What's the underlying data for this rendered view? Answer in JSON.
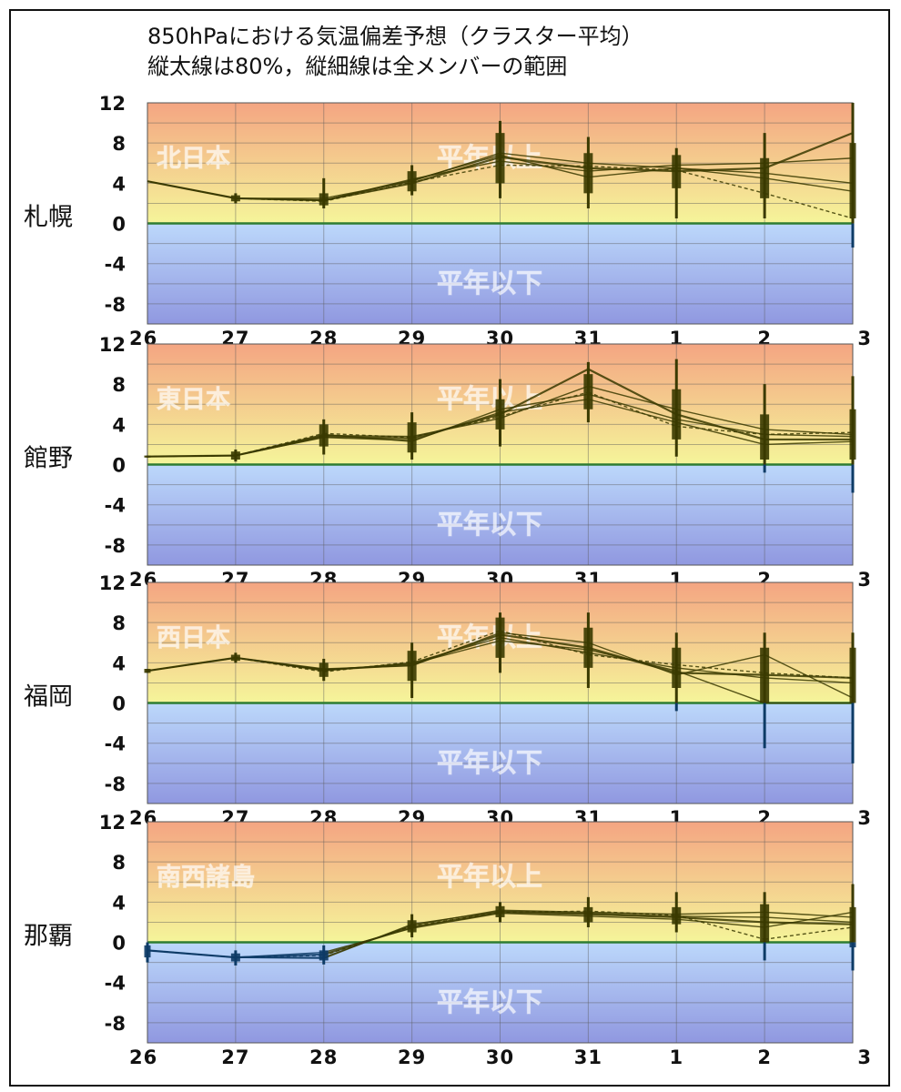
{
  "title": {
    "line1": "850hPaにおける気温偏差予想（クラスター平均）",
    "line2": "縦太線は80%，縦細線は全メンバーの範囲"
  },
  "labels": {
    "above_normal": "平年以上",
    "below_normal": "平年以下"
  },
  "colors": {
    "warm_top": "#f4a582",
    "warm_bottom": "#f5f59a",
    "cool_top": "#bcd8fb",
    "cool_bottom": "#9098e0",
    "zero_line": "#2e7d32",
    "warm_series": "#3a3a00",
    "cool_series": "#0d3b66"
  },
  "chart_data": [
    {
      "type": "line",
      "city": "札幌",
      "region": "北日本",
      "categories": [
        "26",
        "27",
        "28",
        "29",
        "30",
        "31",
        "1",
        "2",
        "3"
      ],
      "ylim": [
        -10,
        12
      ],
      "yticks": [
        12,
        8,
        4,
        0,
        -4,
        -8
      ],
      "cluster_means": [
        [
          4.2,
          2.5,
          2.3,
          4.0,
          6.6,
          5.5,
          5.2,
          5.5,
          9.0
        ],
        [
          4.2,
          2.5,
          2.5,
          4.2,
          7.0,
          6.0,
          5.5,
          5.0,
          4.0
        ],
        [
          4.2,
          2.5,
          2.3,
          4.4,
          6.2,
          5.2,
          5.8,
          6.0,
          6.5
        ],
        [
          4.2,
          2.5,
          2.3,
          4.3,
          6.8,
          4.6,
          5.5,
          4.5,
          3.2
        ],
        [
          4.2,
          2.5,
          2.2,
          4.1,
          5.8,
          5.7,
          5.3,
          3.0,
          0.5
        ]
      ],
      "range_80": [
        [
          4.2,
          4.2
        ],
        [
          2.2,
          2.8
        ],
        [
          1.8,
          3.0
        ],
        [
          3.2,
          5.2
        ],
        [
          4.0,
          9.0
        ],
        [
          3.0,
          7.0
        ],
        [
          3.5,
          6.8
        ],
        [
          2.5,
          6.5
        ],
        [
          0.5,
          8.0
        ]
      ],
      "range_all": [
        [
          4.2,
          4.2
        ],
        [
          2.0,
          3.0
        ],
        [
          1.5,
          4.5
        ],
        [
          2.8,
          5.8
        ],
        [
          2.5,
          10.2
        ],
        [
          1.5,
          8.6
        ],
        [
          0.5,
          7.5
        ],
        [
          0.5,
          9.0
        ],
        [
          -2.4,
          12.0
        ]
      ]
    },
    {
      "type": "line",
      "city": "館野",
      "region": "東日本",
      "categories": [
        "26",
        "27",
        "28",
        "29",
        "30",
        "31",
        "1",
        "2",
        "3"
      ],
      "ylim": [
        -10,
        12
      ],
      "yticks": [
        12,
        8,
        4,
        0,
        -4,
        -8
      ],
      "cluster_means": [
        [
          0.8,
          0.9,
          2.8,
          2.6,
          5.0,
          9.5,
          5.0,
          2.5,
          2.5
        ],
        [
          0.8,
          0.9,
          3.0,
          2.3,
          5.5,
          7.0,
          4.5,
          3.0,
          2.8
        ],
        [
          0.8,
          0.9,
          2.9,
          2.8,
          4.6,
          7.8,
          5.5,
          3.5,
          3.0
        ],
        [
          0.8,
          0.9,
          2.7,
          2.4,
          5.2,
          6.5,
          4.2,
          2.0,
          2.3
        ],
        [
          0.8,
          0.9,
          3.1,
          2.7,
          4.8,
          7.2,
          3.8,
          3.0,
          3.2
        ]
      ],
      "range_80": [
        [
          0.7,
          0.9
        ],
        [
          0.5,
          1.3
        ],
        [
          1.8,
          4.0
        ],
        [
          1.2,
          4.2
        ],
        [
          3.5,
          6.5
        ],
        [
          5.5,
          9.0
        ],
        [
          2.5,
          7.5
        ],
        [
          0.5,
          5.0
        ],
        [
          0.5,
          5.5
        ]
      ],
      "range_all": [
        [
          0.7,
          0.9
        ],
        [
          0.3,
          1.5
        ],
        [
          1.0,
          4.5
        ],
        [
          0.5,
          5.2
        ],
        [
          1.8,
          8.5
        ],
        [
          4.2,
          10.2
        ],
        [
          0.8,
          10.5
        ],
        [
          -0.8,
          8.0
        ],
        [
          -2.8,
          8.8
        ]
      ]
    },
    {
      "type": "line",
      "city": "福岡",
      "region": "西日本",
      "categories": [
        "26",
        "27",
        "28",
        "29",
        "30",
        "31",
        "1",
        "2",
        "3"
      ],
      "ylim": [
        -10,
        12
      ],
      "yticks": [
        12,
        8,
        4,
        0,
        -4,
        -8
      ],
      "cluster_means": [
        [
          3.2,
          4.5,
          3.3,
          3.8,
          6.8,
          5.5,
          3.0,
          2.8,
          2.5
        ],
        [
          3.2,
          4.5,
          3.2,
          4.0,
          6.5,
          5.0,
          3.5,
          2.5,
          2.0
        ],
        [
          3.2,
          4.5,
          3.4,
          3.7,
          7.0,
          6.0,
          2.8,
          4.8,
          0.5
        ],
        [
          3.2,
          4.5,
          3.3,
          3.9,
          6.2,
          5.3,
          3.2,
          0.0,
          0.0
        ],
        [
          3.2,
          4.5,
          3.1,
          4.1,
          7.2,
          4.8,
          3.8,
          3.0,
          2.5
        ]
      ],
      "range_80": [
        [
          3.0,
          3.4
        ],
        [
          4.2,
          4.8
        ],
        [
          2.6,
          4.0
        ],
        [
          2.2,
          5.2
        ],
        [
          4.5,
          8.5
        ],
        [
          3.5,
          7.5
        ],
        [
          1.5,
          5.5
        ],
        [
          0.0,
          5.5
        ],
        [
          0.0,
          5.5
        ]
      ],
      "range_all": [
        [
          3.0,
          3.4
        ],
        [
          4.0,
          5.0
        ],
        [
          2.2,
          4.4
        ],
        [
          0.5,
          6.0
        ],
        [
          3.0,
          9.0
        ],
        [
          1.5,
          9.0
        ],
        [
          -0.8,
          7.0
        ],
        [
          -4.5,
          7.0
        ],
        [
          -6.0,
          7.0
        ]
      ]
    },
    {
      "type": "line",
      "city": "那覇",
      "region": "南西諸島",
      "categories": [
        "26",
        "27",
        "28",
        "29",
        "30",
        "31",
        "1",
        "2",
        "3"
      ],
      "ylim": [
        -10,
        12
      ],
      "yticks": [
        12,
        8,
        4,
        0,
        -4,
        -8
      ],
      "cluster_means": [
        [
          -0.8,
          -1.5,
          -1.2,
          1.5,
          3.0,
          2.8,
          2.5,
          2.0,
          1.8
        ],
        [
          -0.8,
          -1.5,
          -1.5,
          1.7,
          3.2,
          3.0,
          2.8,
          3.0,
          2.5
        ],
        [
          -0.8,
          -1.5,
          -1.0,
          1.4,
          2.9,
          2.6,
          2.3,
          1.5,
          3.0
        ],
        [
          -0.8,
          -1.5,
          -1.6,
          1.8,
          3.1,
          2.9,
          2.6,
          2.5,
          2.0
        ],
        [
          -0.8,
          -1.5,
          -1.3,
          1.6,
          3.0,
          3.1,
          2.7,
          0.3,
          1.5
        ]
      ],
      "range_80": [
        [
          -1.5,
          -0.3
        ],
        [
          -1.9,
          -1.1
        ],
        [
          -1.8,
          -0.8
        ],
        [
          1.0,
          2.2
        ],
        [
          2.5,
          3.6
        ],
        [
          2.0,
          3.5
        ],
        [
          1.8,
          3.5
        ],
        [
          0.0,
          3.8
        ],
        [
          -0.5,
          3.5
        ]
      ],
      "range_all": [
        [
          -2.0,
          0.0
        ],
        [
          -2.3,
          -0.8
        ],
        [
          -2.2,
          -0.3
        ],
        [
          0.5,
          2.8
        ],
        [
          2.0,
          4.0
        ],
        [
          1.5,
          4.5
        ],
        [
          1.0,
          5.0
        ],
        [
          -1.8,
          5.0
        ],
        [
          -2.8,
          5.8
        ]
      ]
    }
  ]
}
